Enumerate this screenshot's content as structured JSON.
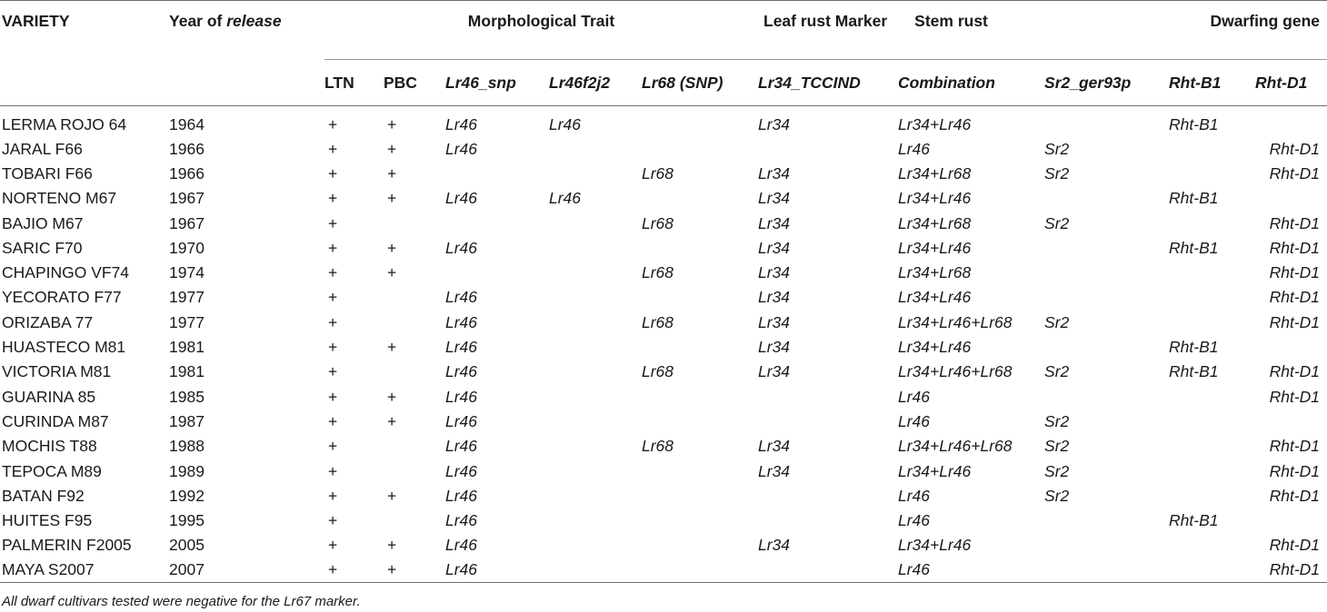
{
  "header": {
    "variety": "VARIETY",
    "year_prefix": "Year of",
    "year_italic": "release",
    "morph": "Morphological Trait",
    "leaf": "Leaf rust Marker",
    "stem": "Stem rust",
    "dwarf": "Dwarfing gene",
    "sub": [
      "LTN",
      "PBC",
      "Lr46_snp",
      "Lr46f2j2",
      "Lr68 (SNP)",
      "Lr34_TCCIND",
      "Combination",
      "Sr2_ger93p",
      "Rht-B1",
      "Rht-D1"
    ]
  },
  "rows": [
    [
      "LERMA ROJO 64",
      "1964",
      "+",
      "+",
      "Lr46",
      "Lr46",
      "",
      "Lr34",
      "Lr34+Lr46",
      "",
      "Rht-B1",
      ""
    ],
    [
      "JARAL F66",
      "1966",
      "+",
      "+",
      "Lr46",
      "",
      "",
      "",
      "Lr46",
      "Sr2",
      "",
      "Rht-D1"
    ],
    [
      "TOBARI F66",
      "1966",
      "+",
      "+",
      "",
      "",
      "Lr68",
      "Lr34",
      "Lr34+Lr68",
      "Sr2",
      "",
      "Rht-D1"
    ],
    [
      "NORTENO M67",
      "1967",
      "+",
      "+",
      "Lr46",
      "Lr46",
      "",
      "Lr34",
      "Lr34+Lr46",
      "",
      "Rht-B1",
      ""
    ],
    [
      "BAJIO M67",
      "1967",
      "+",
      "",
      "",
      "",
      "Lr68",
      "Lr34",
      "Lr34+Lr68",
      "Sr2",
      "",
      "Rht-D1"
    ],
    [
      "SARIC F70",
      "1970",
      "+",
      "+",
      "Lr46",
      "",
      "",
      "Lr34",
      "Lr34+Lr46",
      "",
      "Rht-B1",
      "Rht-D1"
    ],
    [
      "CHAPINGO VF74",
      "1974",
      "+",
      "+",
      "",
      "",
      "Lr68",
      "Lr34",
      "Lr34+Lr68",
      "",
      "",
      "Rht-D1"
    ],
    [
      "YECORATO F77",
      "1977",
      "+",
      "",
      "Lr46",
      "",
      "",
      "Lr34",
      "Lr34+Lr46",
      "",
      "",
      "Rht-D1"
    ],
    [
      "ORIZABA 77",
      "1977",
      "+",
      "",
      "Lr46",
      "",
      "Lr68",
      "Lr34",
      "Lr34+Lr46+Lr68",
      "Sr2",
      "",
      "Rht-D1"
    ],
    [
      "HUASTECO M81",
      "1981",
      "+",
      "+",
      "Lr46",
      "",
      "",
      "Lr34",
      "Lr34+Lr46",
      "",
      "Rht-B1",
      ""
    ],
    [
      "VICTORIA M81",
      "1981",
      "+",
      "",
      "Lr46",
      "",
      "Lr68",
      "Lr34",
      "Lr34+Lr46+Lr68",
      "Sr2",
      "Rht-B1",
      "Rht-D1"
    ],
    [
      "GUARINA 85",
      "1985",
      "+",
      "+",
      "Lr46",
      "",
      "",
      "",
      "Lr46",
      "",
      "",
      "Rht-D1"
    ],
    [
      "CURINDA M87",
      "1987",
      "+",
      "+",
      "Lr46",
      "",
      "",
      "",
      "Lr46",
      "Sr2",
      "",
      ""
    ],
    [
      "MOCHIS T88",
      "1988",
      "+",
      "",
      "Lr46",
      "",
      "Lr68",
      "Lr34",
      "Lr34+Lr46+Lr68",
      "Sr2",
      "",
      "Rht-D1"
    ],
    [
      "TEPOCA M89",
      "1989",
      "+",
      "",
      "Lr46",
      "",
      "",
      "Lr34",
      "Lr34+Lr46",
      "Sr2",
      "",
      "Rht-D1"
    ],
    [
      "BATAN F92",
      "1992",
      "+",
      "+",
      "Lr46",
      "",
      "",
      "",
      "Lr46",
      "Sr2",
      "",
      "Rht-D1"
    ],
    [
      "HUITES F95",
      "1995",
      "+",
      "",
      "Lr46",
      "",
      "",
      "",
      "Lr46",
      "",
      "Rht-B1",
      ""
    ],
    [
      "PALMERIN F2005",
      "2005",
      "+",
      "+",
      "Lr46",
      "",
      "",
      "Lr34",
      "Lr34+Lr46",
      "",
      "",
      "Rht-D1"
    ],
    [
      "MAYA S2007",
      "2007",
      "+",
      "+",
      "Lr46",
      "",
      "",
      "",
      "Lr46",
      "",
      "",
      "Rht-D1"
    ]
  ],
  "footnote": "All dwarf cultivars tested were negative for the Lr67 marker."
}
